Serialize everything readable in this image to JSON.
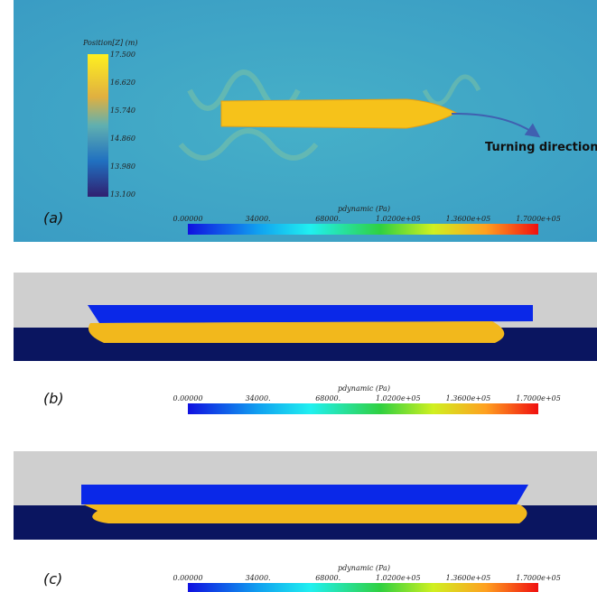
{
  "panels": [
    {
      "label": "(a)",
      "position_legend": {
        "title": "Position[Z] (m)",
        "ticks": [
          "17.500",
          "16.620",
          "15.740",
          "14.860",
          "13.980",
          "13.100"
        ]
      },
      "annotation": "Turning direction",
      "colorbar": {
        "title": "pdynamic (Pa)",
        "ticks": [
          "0.00000",
          "34000.",
          "68000.",
          "1.0200e+05",
          "1.3600e+05",
          "1.7000e+05"
        ]
      }
    },
    {
      "label": "(b)",
      "colorbar": {
        "title": "pdynamic (Pa)",
        "ticks": [
          "0.00000",
          "34000.",
          "68000.",
          "1.0200e+05",
          "1.3600e+05",
          "1.7000e+05"
        ]
      }
    },
    {
      "label": "(c)",
      "colorbar": {
        "title": "pdynamic (Pa)",
        "ticks": [
          "0.00000",
          "34000.",
          "68000.",
          "1.0200e+05",
          "1.3600e+05",
          "1.7000e+05"
        ]
      }
    }
  ]
}
